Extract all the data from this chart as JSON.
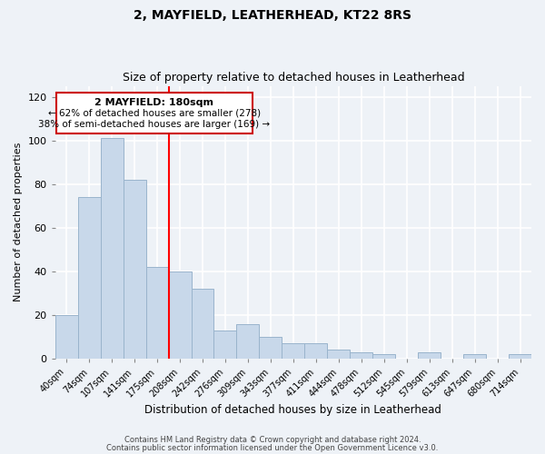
{
  "title": "2, MAYFIELD, LEATHERHEAD, KT22 8RS",
  "subtitle": "Size of property relative to detached houses in Leatherhead",
  "xlabel": "Distribution of detached houses by size in Leatherhead",
  "ylabel": "Number of detached properties",
  "bar_labels": [
    "40sqm",
    "74sqm",
    "107sqm",
    "141sqm",
    "175sqm",
    "208sqm",
    "242sqm",
    "276sqm",
    "309sqm",
    "343sqm",
    "377sqm",
    "411sqm",
    "444sqm",
    "478sqm",
    "512sqm",
    "545sqm",
    "579sqm",
    "613sqm",
    "647sqm",
    "680sqm",
    "714sqm"
  ],
  "bar_values": [
    20,
    74,
    101,
    82,
    42,
    40,
    32,
    13,
    16,
    10,
    7,
    7,
    4,
    3,
    2,
    0,
    3,
    0,
    2,
    0,
    2
  ],
  "bar_color": "#c8d8ea",
  "bar_edge_color": "#9ab4cc",
  "property_line_x": 4.5,
  "annotation_title": "2 MAYFIELD: 180sqm",
  "annotation_line1": "← 62% of detached houses are smaller (278)",
  "annotation_line2": "38% of semi-detached houses are larger (169) →",
  "annotation_box_color": "#cc0000",
  "ylim": [
    0,
    125
  ],
  "yticks": [
    0,
    20,
    40,
    60,
    80,
    100,
    120
  ],
  "footer1": "Contains HM Land Registry data © Crown copyright and database right 2024.",
  "footer2": "Contains public sector information licensed under the Open Government Licence v3.0.",
  "bg_color": "#eef2f7",
  "grid_color": "#ffffff",
  "title_fontsize": 10,
  "subtitle_fontsize": 9
}
